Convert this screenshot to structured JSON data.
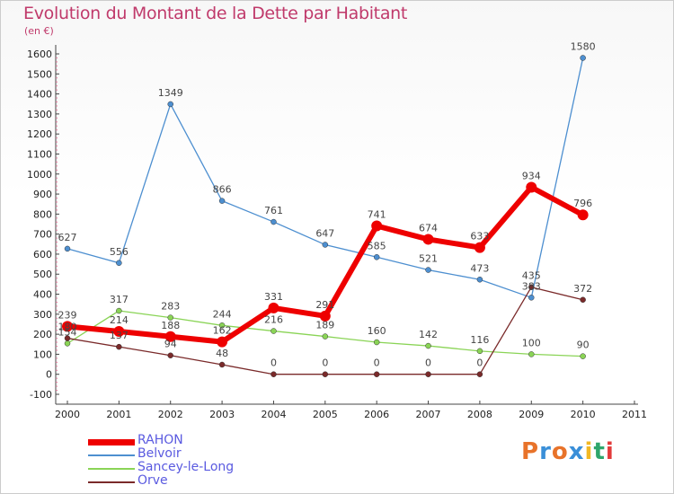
{
  "header": {
    "title": "Evolution du Montant de la Dette par Habitant",
    "unit": "(en €)"
  },
  "logo": {
    "text": "Proxiti",
    "colors": [
      "#e8732a",
      "#3a8fd8",
      "#e8732a",
      "#3a8fd8",
      "#f2b824",
      "#2ea56b",
      "#e23b3b"
    ]
  },
  "chart_data": {
    "type": "line",
    "x": [
      2000,
      2001,
      2002,
      2003,
      2004,
      2005,
      2006,
      2007,
      2008,
      2009,
      2010
    ],
    "xticks": [
      "2000",
      "2001",
      "2002",
      "2003",
      "2004",
      "2005",
      "2006",
      "2007",
      "2008",
      "2009",
      "2010",
      "2011"
    ],
    "xlim": [
      2000,
      2011
    ],
    "ylim": [
      -100,
      1600
    ],
    "yticks": [
      "-100",
      "0",
      "100",
      "200",
      "300",
      "400",
      "500",
      "600",
      "700",
      "800",
      "900",
      "1000",
      "1100",
      "1200",
      "1300",
      "1400",
      "1500",
      "1600"
    ],
    "grid": false,
    "legend_position": "bottom-left",
    "series": [
      {
        "name": "RAHON",
        "color": "#ee0000",
        "values": [
          239,
          214,
          188,
          162,
          331,
          291,
          741,
          674,
          633,
          934,
          796
        ],
        "labels": [
          "239",
          "214",
          "188",
          "162",
          "331",
          "291",
          "741",
          "674",
          "633",
          "934",
          "796"
        ]
      },
      {
        "name": "Belvoir",
        "color": "#4d8fd0",
        "values": [
          627,
          556,
          1349,
          866,
          761,
          647,
          585,
          521,
          473,
          383,
          1580
        ],
        "labels": [
          "627",
          "556",
          "1349",
          "866",
          "761",
          "647",
          "585",
          "521",
          "473",
          "383",
          "1580"
        ]
      },
      {
        "name": "Sancey-le-Long",
        "color": "#8ad456",
        "values": [
          154,
          317,
          283,
          244,
          216,
          189,
          160,
          142,
          116,
          100,
          90
        ],
        "labels": [
          "154",
          "317",
          "283",
          "244",
          "216",
          "189",
          "160",
          "142",
          "116",
          "100",
          "90"
        ]
      },
      {
        "name": "Orve",
        "color": "#7a2a2a",
        "values": [
          180,
          137,
          94,
          48,
          0,
          0,
          0,
          0,
          0,
          435,
          372
        ],
        "labels": [
          "180",
          "137",
          "94",
          "48",
          "0",
          "0",
          "0",
          "0",
          "0",
          "435",
          "372"
        ]
      }
    ]
  }
}
